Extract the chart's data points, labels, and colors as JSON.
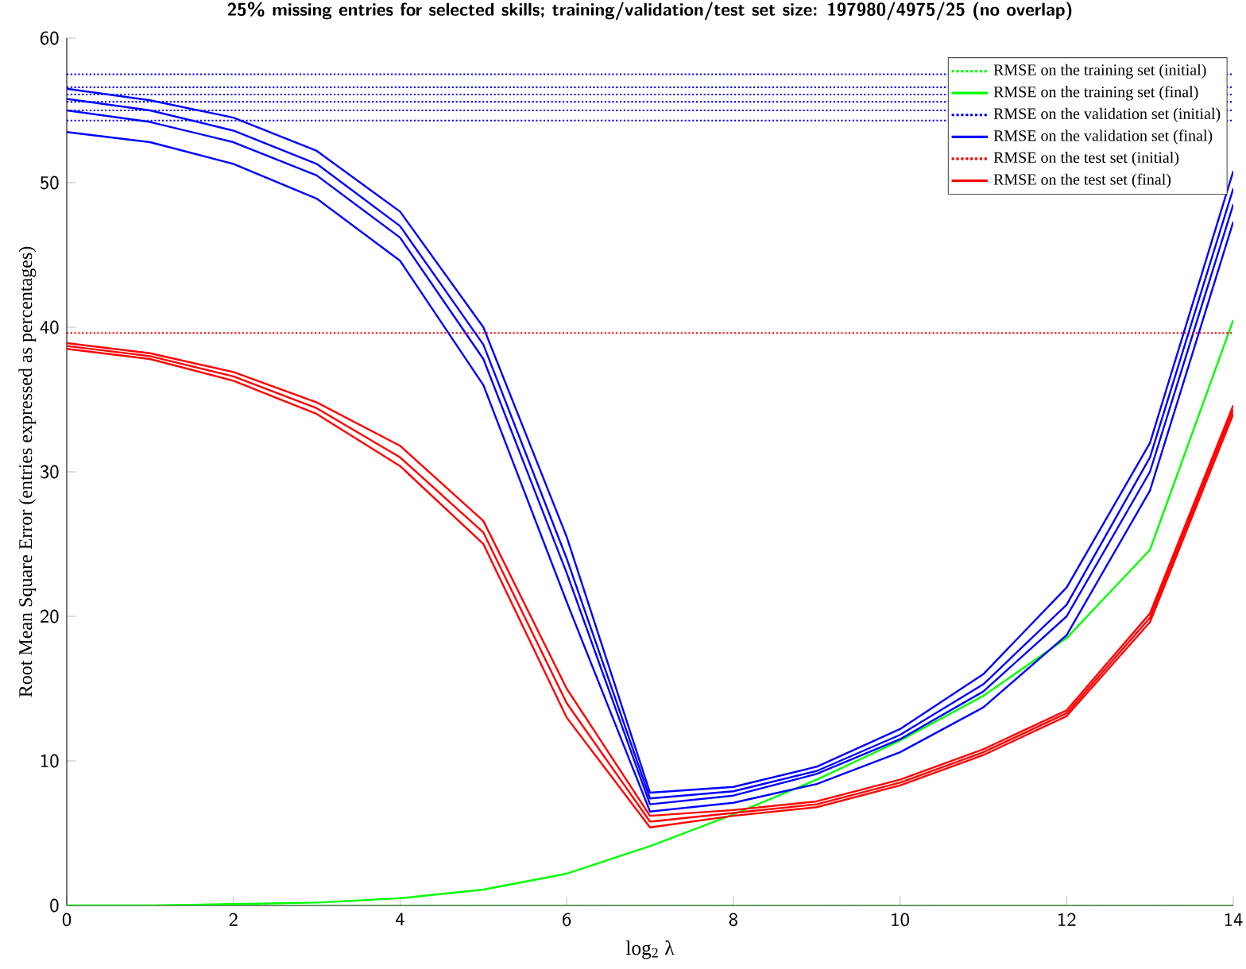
{
  "chart_data": {
    "type": "line",
    "title": "25% missing entries for selected skills; training/validation/test set size: 197980/4975/25 (no overlap)",
    "xlabel": "log$_{2}$ λ",
    "ylabel": "Root Mean Square Error (entries expressed as percentages)",
    "x": [
      0,
      1,
      2,
      3,
      4,
      5,
      6,
      7,
      8,
      9,
      10,
      11,
      12,
      13,
      14
    ],
    "xlim": [
      0,
      14
    ],
    "xticks": [
      0,
      2,
      4,
      6,
      8,
      10,
      12,
      14
    ],
    "ylim": [
      0,
      60
    ],
    "yticks": [
      0,
      10,
      20,
      30,
      40,
      50,
      60
    ],
    "legend": "top right",
    "grid": false,
    "marker": "none",
    "series": [
      {
        "name": "RMSE on the training set (initial)",
        "color": "#00ff00",
        "line_style": "dotted",
        "values": [
          0,
          0,
          0,
          0,
          0,
          0,
          0,
          0,
          0,
          0,
          0,
          0,
          0,
          0,
          0
        ]
      },
      {
        "name": "RMSE on the training set (final)",
        "color": "#00ff00",
        "line_style": "solid",
        "values": [
          0,
          0,
          0.1,
          0.2,
          0.5,
          1.1,
          2.2,
          4.1,
          6.3,
          8.7,
          11.4,
          14.5,
          18.5,
          24.6,
          40.5
        ]
      },
      {
        "name": "RMSE on the validation set (initial)",
        "color": "#0000ff",
        "line_style": "dotted",
        "values": [
          55.6,
          55.6,
          55.6,
          55.6,
          55.6,
          55.6,
          55.6,
          55.6,
          55.6,
          55.6,
          null,
          null,
          null,
          null,
          55.6
        ]
      },
      {
        "name": "RMSE on the validation set (final)",
        "color": "#0000ff",
        "line_style": "solid",
        "values": [
          55,
          54.2,
          52.8,
          50.5,
          46.2,
          37.8,
          23,
          7,
          7.6,
          9.1,
          11.5,
          14.8,
          20,
          30,
          48.5
        ]
      },
      {
        "name": "RMSE on the test set (initial)",
        "color": "#ff0000",
        "line_style": "dotted",
        "values": [
          39.6,
          39.6,
          39.6,
          39.6,
          39.6,
          39.6,
          39.6,
          39.6,
          39.6,
          39.6,
          39.6,
          39.6,
          39.6,
          39.6,
          39.6
        ]
      },
      {
        "name": "RMSE on the test set (final)",
        "color": "#ff0000",
        "line_style": "solid",
        "values": [
          38.7,
          38,
          36.6,
          34.4,
          31,
          25.8,
          14,
          5.8,
          6.4,
          7,
          8.5,
          10.6,
          13.3,
          19.9,
          34.3
        ]
      },
      {
        "color": "#0000ff",
        "line_style": "dotted",
        "values": [
          57.5,
          57.5,
          57.5,
          57.5,
          57.5,
          57.5,
          57.5,
          57.5,
          57.5,
          57.5,
          null,
          null,
          null,
          null,
          57.5
        ]
      },
      {
        "color": "#0000ff",
        "line_style": "dotted",
        "values": [
          56.6,
          56.6,
          56.6,
          56.6,
          56.6,
          56.6,
          56.6,
          56.6,
          56.6,
          56.6,
          null,
          null,
          null,
          null,
          56.6
        ]
      },
      {
        "color": "#0000ff",
        "line_style": "dotted",
        "values": [
          56.1,
          56.1,
          56.1,
          56.1,
          56.1,
          56.1,
          56.1,
          56.1,
          56.1,
          56.1,
          null,
          null,
          null,
          null,
          56.1
        ]
      },
      {
        "color": "#0000ff",
        "line_style": "dotted",
        "values": [
          55,
          55,
          55,
          55,
          55,
          55,
          55,
          55,
          55,
          55,
          null,
          null,
          null,
          null,
          55
        ]
      },
      {
        "color": "#0000ff",
        "line_style": "dotted",
        "values": [
          54.3,
          54.3,
          54.3,
          54.3,
          54.3,
          54.3,
          54.3,
          54.3,
          54.3,
          54.3,
          null,
          null,
          null,
          null,
          54.3
        ]
      },
      {
        "color": "#0000ff",
        "line_style": "solid",
        "values": [
          56.5,
          55.7,
          54.5,
          52.2,
          48,
          40,
          25.5,
          7.8,
          8.2,
          9.6,
          12.2,
          16,
          22,
          32,
          50.8
        ]
      },
      {
        "color": "#0000ff",
        "line_style": "solid",
        "values": [
          55.8,
          55,
          53.6,
          51.3,
          47,
          38.8,
          24,
          7.4,
          7.9,
          9.3,
          11.8,
          15.3,
          20.8,
          31,
          49.6
        ]
      },
      {
        "color": "#0000ff",
        "line_style": "solid",
        "values": [
          53.5,
          52.8,
          51.3,
          48.9,
          44.6,
          36,
          21,
          6.5,
          7.1,
          8.4,
          10.6,
          13.7,
          18.7,
          28.7,
          47.3
        ]
      },
      {
        "color": "#ff0000",
        "line_style": "solid",
        "values": [
          38.9,
          38.2,
          36.9,
          34.8,
          31.8,
          26.6,
          15,
          6.2,
          6.6,
          7.2,
          8.7,
          10.8,
          13.5,
          20.2,
          34.6
        ]
      },
      {
        "color": "#ff0000",
        "line_style": "solid",
        "values": [
          38.5,
          37.8,
          36.3,
          34,
          30.4,
          25,
          13,
          5.4,
          6.2,
          6.8,
          8.3,
          10.4,
          13.1,
          19.6,
          34
        ]
      }
    ]
  }
}
